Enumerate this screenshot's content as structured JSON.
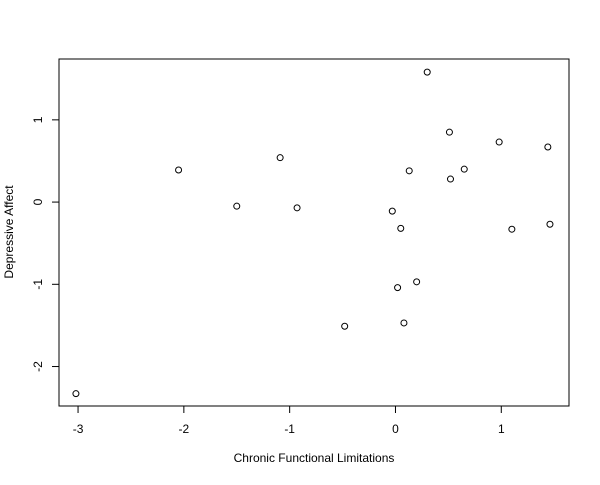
{
  "chart_data": {
    "type": "scatter",
    "title": "",
    "xlabel": "Chronic Functional Limitations",
    "ylabel": "Depressive Affect",
    "xlim": [
      -3.18,
      1.64
    ],
    "ylim": [
      -2.48,
      1.74
    ],
    "x_ticks": [
      -3,
      -2,
      -1,
      0,
      1
    ],
    "y_ticks": [
      -2,
      -1,
      0,
      1
    ],
    "x_tick_labels": [
      "-3",
      "-2",
      "-1",
      "0",
      "1"
    ],
    "y_tick_labels": [
      "-2",
      "-1",
      "0",
      "1"
    ],
    "grid": false,
    "marker": "open-circle",
    "points": [
      {
        "x": -3.02,
        "y": -2.33
      },
      {
        "x": -2.05,
        "y": 0.39
      },
      {
        "x": -1.5,
        "y": -0.05
      },
      {
        "x": -1.09,
        "y": 0.54
      },
      {
        "x": -0.93,
        "y": -0.07
      },
      {
        "x": -0.48,
        "y": -1.51
      },
      {
        "x": -0.03,
        "y": -0.11
      },
      {
        "x": 0.02,
        "y": -1.04
      },
      {
        "x": 0.05,
        "y": -0.32
      },
      {
        "x": 0.08,
        "y": -1.47
      },
      {
        "x": 0.13,
        "y": 0.38
      },
      {
        "x": 0.2,
        "y": -0.97
      },
      {
        "x": 0.3,
        "y": 1.58
      },
      {
        "x": 0.51,
        "y": 0.85
      },
      {
        "x": 0.52,
        "y": 0.28
      },
      {
        "x": 0.65,
        "y": 0.4
      },
      {
        "x": 0.98,
        "y": 0.73
      },
      {
        "x": 1.1,
        "y": -0.33
      },
      {
        "x": 1.44,
        "y": 0.67
      },
      {
        "x": 1.46,
        "y": -0.27
      }
    ]
  }
}
